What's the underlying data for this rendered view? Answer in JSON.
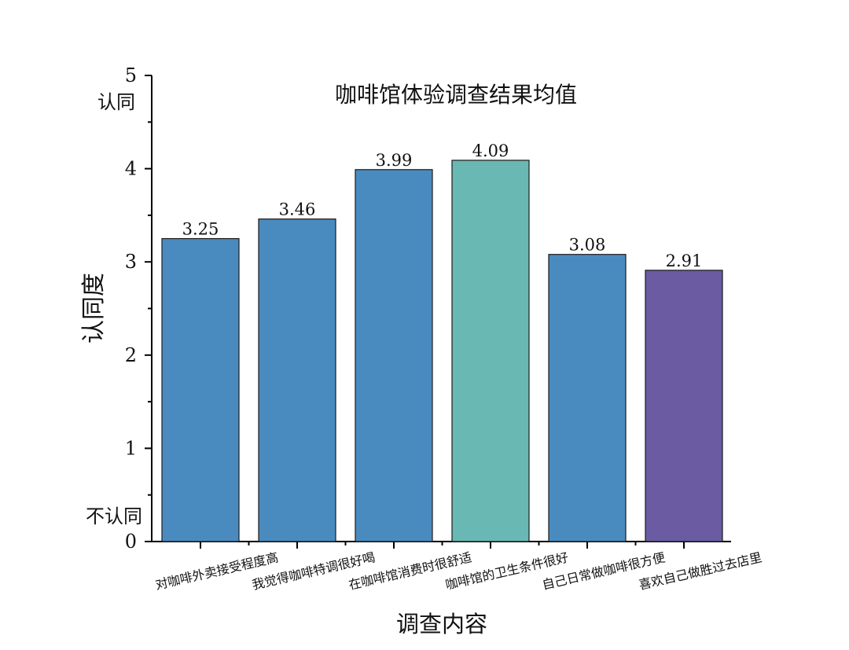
{
  "chart_data": {
    "type": "bar",
    "title": "咖啡馆体验调查结果均值",
    "xlabel": "调查内容",
    "ylabel": "认同度",
    "ylim": [
      0,
      5
    ],
    "yticks": [
      0,
      1,
      2,
      3,
      4,
      5
    ],
    "y_annotations": [
      {
        "text": "认同",
        "y": 4.75
      },
      {
        "text": "不认同",
        "y": 0.27
      }
    ],
    "categories": [
      "对咖啡外卖接受程度高",
      "我觉得咖啡特调很好喝",
      "在咖啡馆消费时很舒适",
      "咖啡馆的卫生条件很好",
      "自己日常做咖啡很方便",
      "喜欢自己做胜过去店里"
    ],
    "values": [
      3.25,
      3.46,
      3.99,
      4.09,
      3.08,
      2.91
    ],
    "value_labels": [
      "3.25",
      "3.46",
      "3.99",
      "4.09",
      "3.08",
      "2.91"
    ],
    "colors": [
      "#4a8bbf",
      "#4a8bbf",
      "#4a8bbf",
      "#6ab8b3",
      "#4a8bbf",
      "#6a5ba2"
    ],
    "grid": false,
    "legend": "none"
  }
}
